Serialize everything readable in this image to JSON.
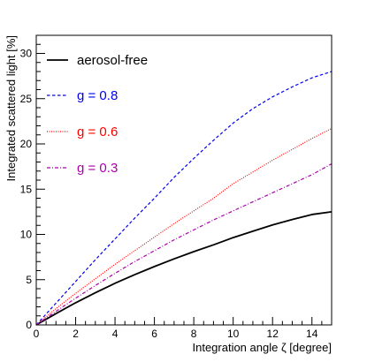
{
  "chart_data": {
    "type": "line",
    "title": "",
    "xlabel": "Integration angle ζ [degree]",
    "ylabel": "Integrated scattered light [%]",
    "xlim": [
      0,
      15
    ],
    "ylim": [
      0,
      32
    ],
    "x_major_ticks": [
      0,
      2,
      4,
      6,
      8,
      10,
      12,
      14
    ],
    "x_tick_labels": [
      "0",
      "2",
      "4",
      "6",
      "8",
      "10",
      "12",
      "14"
    ],
    "y_major_ticks": [
      0,
      5,
      10,
      15,
      20,
      25,
      30
    ],
    "y_tick_labels": [
      "0",
      "5",
      "10",
      "15",
      "20",
      "25",
      "30"
    ],
    "grid": false,
    "legend_placement": "top-left",
    "series": [
      {
        "name": "aerosol-free",
        "color": "#000000",
        "style": "solid",
        "x": [
          0,
          1,
          2,
          3,
          4,
          5,
          6,
          7,
          8,
          9,
          10,
          11,
          12,
          13,
          14,
          15
        ],
        "y": [
          0,
          1.25,
          2.45,
          3.55,
          4.6,
          5.55,
          6.45,
          7.3,
          8.1,
          8.85,
          9.65,
          10.35,
          11.05,
          11.65,
          12.2,
          12.5
        ]
      },
      {
        "name": "g = 0.8",
        "color": "#0000ee",
        "style": "dashed",
        "x": [
          0,
          1,
          2,
          3,
          4,
          5,
          6,
          7,
          8,
          9,
          10,
          11,
          12,
          13,
          14,
          15
        ],
        "y": [
          0,
          2.4,
          4.8,
          7.2,
          9.5,
          11.8,
          14.0,
          16.3,
          18.4,
          20.4,
          22.3,
          23.9,
          25.2,
          26.3,
          27.3,
          28.0
        ]
      },
      {
        "name": "g = 0.6",
        "color": "#ff0000",
        "style": "dotted",
        "x": [
          0,
          1,
          2,
          3,
          4,
          5,
          6,
          7,
          8,
          9,
          10,
          11,
          12,
          13,
          14,
          15
        ],
        "y": [
          0,
          1.8,
          3.5,
          5.1,
          6.7,
          8.2,
          9.7,
          11.2,
          12.6,
          14.0,
          15.6,
          16.9,
          18.2,
          19.4,
          20.6,
          21.7
        ]
      },
      {
        "name": "g = 0.3",
        "color": "#aa00aa",
        "style": "dashdot",
        "x": [
          0,
          1,
          2,
          3,
          4,
          5,
          6,
          7,
          8,
          9,
          10,
          11,
          12,
          13,
          14,
          15
        ],
        "y": [
          0,
          1.5,
          2.95,
          4.35,
          5.7,
          7.0,
          8.2,
          9.4,
          10.5,
          11.6,
          12.6,
          13.6,
          14.6,
          15.6,
          16.6,
          17.8
        ]
      }
    ]
  }
}
